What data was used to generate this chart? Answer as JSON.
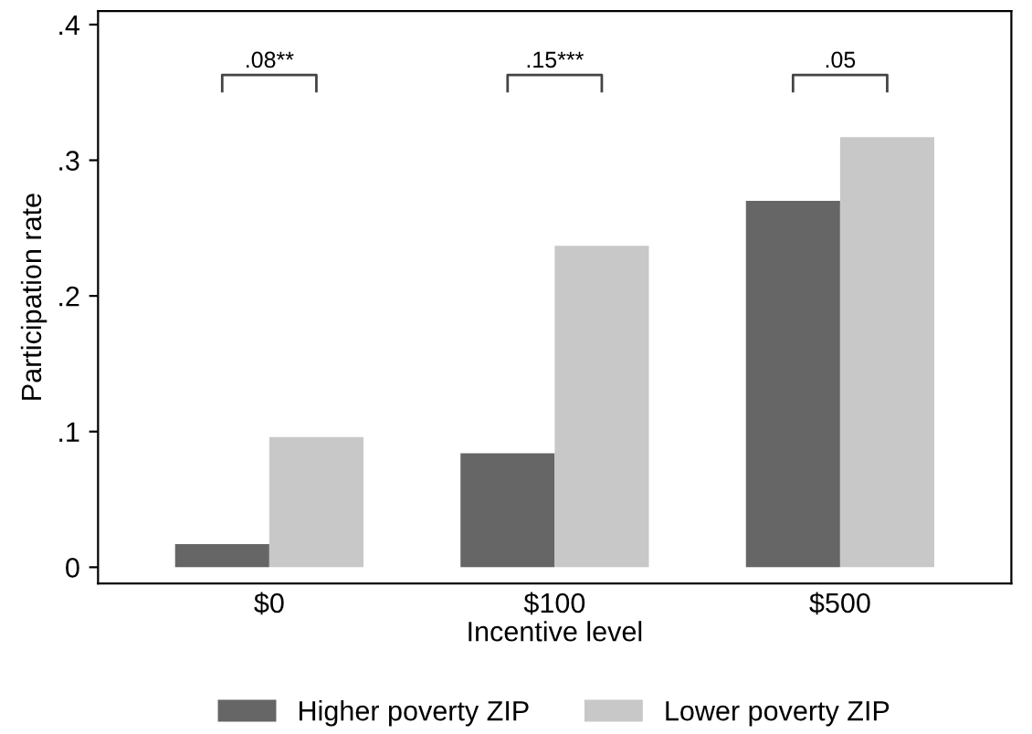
{
  "chart_data": {
    "type": "bar",
    "xlabel": "Incentive level",
    "ylabel": "Participation rate",
    "categories": [
      "$0",
      "$100",
      "$500"
    ],
    "series": [
      {
        "name": "Higher poverty ZIP",
        "color": "#666666",
        "values": [
          0.017,
          0.084,
          0.27
        ]
      },
      {
        "name": "Lower poverty ZIP",
        "color": "#c8c8c8",
        "values": [
          0.096,
          0.237,
          0.317
        ]
      }
    ],
    "ylim": [
      -0.012,
      0.41
    ],
    "yticks": [
      0,
      {
        "value": 0.1,
        "label": ".1"
      },
      {
        "value": 0.2,
        "label": ".2"
      },
      {
        "value": 0.3,
        "label": ".3"
      },
      {
        "value": 0.4,
        "label": ".4"
      }
    ],
    "annotations": [
      ".08**",
      ".15***",
      ".05"
    ],
    "grid": false,
    "legend": "bottom"
  }
}
